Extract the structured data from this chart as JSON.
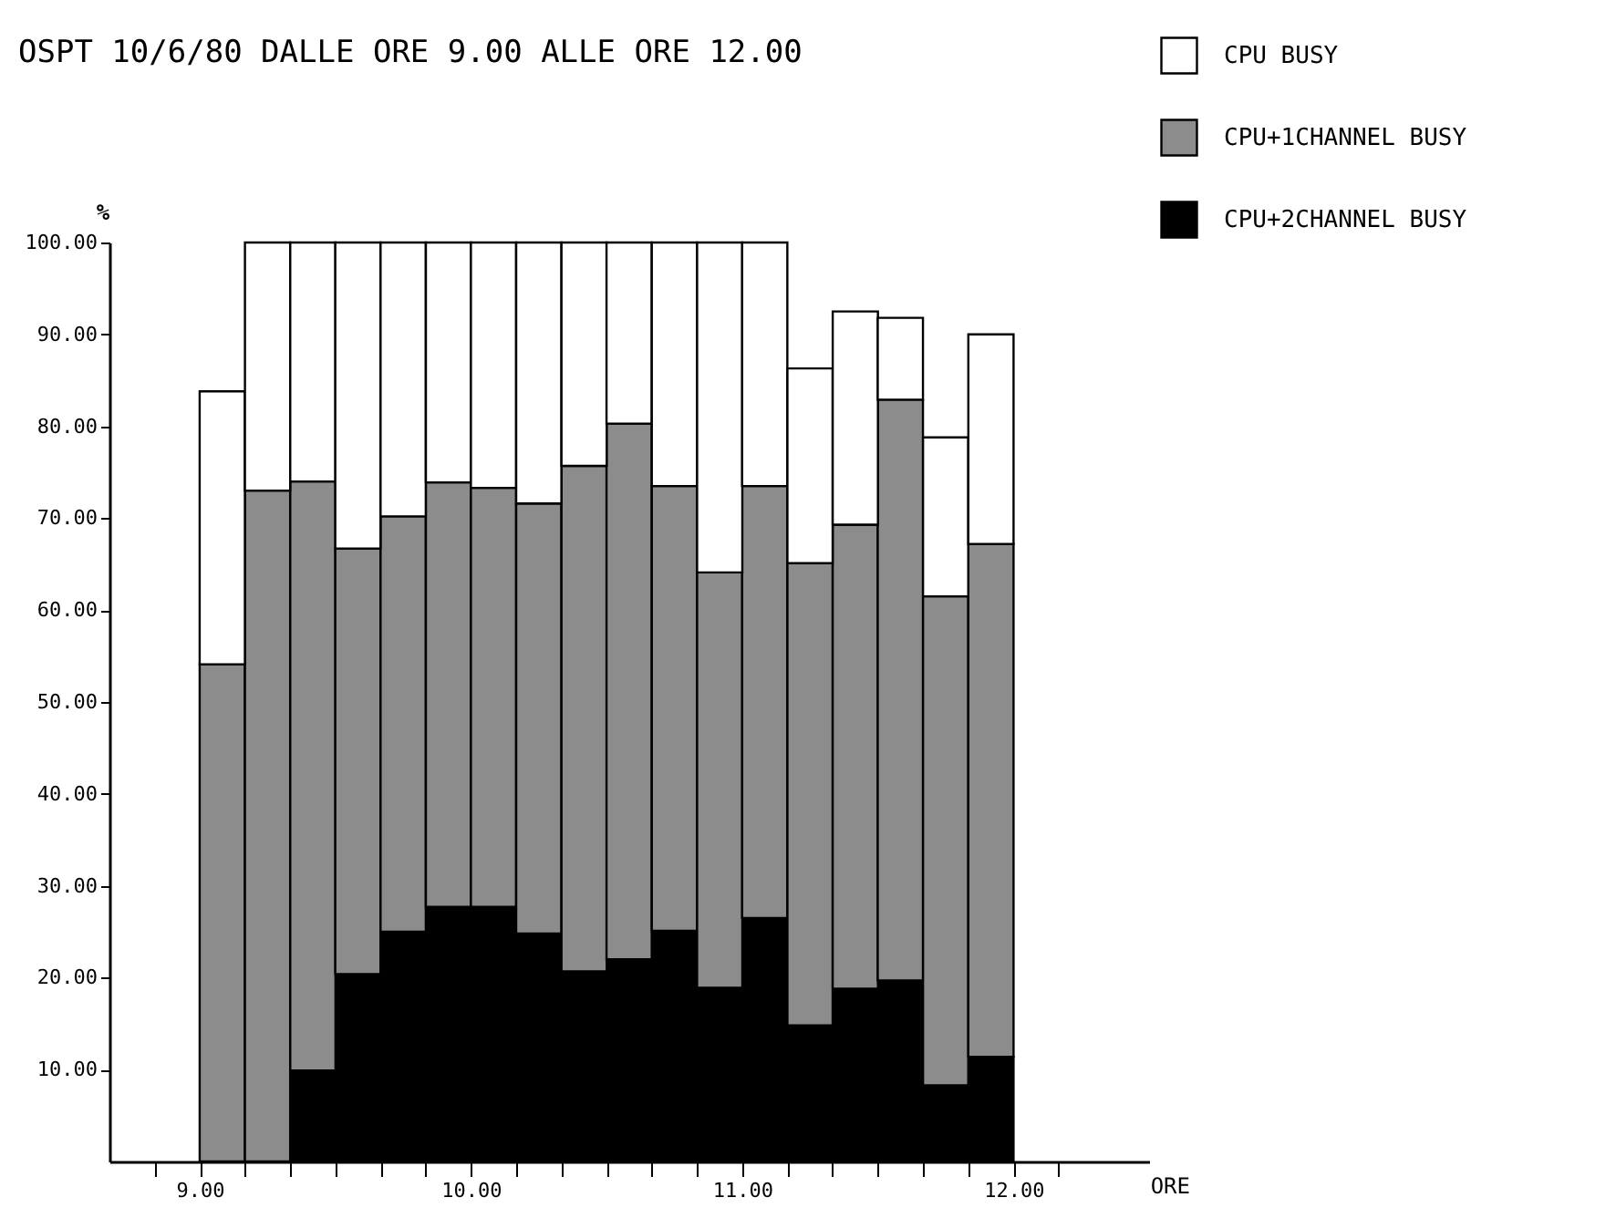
{
  "chart_data": {
    "type": "bar",
    "title": "OSPT 10/6/80 DALLE ORE 9.00 ALLE ORE 12.00",
    "xlabel": "ORE",
    "ylabel": "%",
    "stacked": true,
    "legend": "top right",
    "grid": false,
    "x": [
      9.083,
      9.25,
      9.417,
      9.583,
      9.75,
      9.917,
      10.083,
      10.25,
      10.417,
      10.583,
      10.75,
      10.917,
      11.083,
      11.25,
      11.417,
      11.583,
      11.75,
      11.917
    ],
    "series": [
      {
        "name": "CPU+2CHANNEL BUSY",
        "color": "#000000",
        "values": [
          0,
          0,
          9.9,
          20.4,
          25.0,
          27.7,
          27.7,
          24.8,
          20.7,
          22.0,
          25.1,
          18.9,
          26.5,
          14.8,
          18.8,
          19.7,
          8.3,
          11.4
        ]
      },
      {
        "name": "CPU+1CHANNEL BUSY",
        "color": "#8c8c8c",
        "values": [
          54.1,
          73.0,
          64.1,
          46.3,
          45.2,
          46.2,
          45.6,
          46.8,
          55.0,
          58.3,
          48.4,
          45.2,
          47.0,
          50.3,
          50.5,
          63.2,
          53.2,
          55.8
        ]
      },
      {
        "name": "CPU BUSY",
        "color": "#ffffff",
        "values": [
          29.7,
          27.0,
          26.0,
          33.3,
          29.8,
          26.1,
          26.7,
          28.4,
          24.3,
          19.7,
          26.5,
          35.9,
          26.5,
          21.2,
          23.2,
          8.9,
          17.3,
          22.8
        ]
      }
    ],
    "xlim": [
      8.667,
      12.5
    ],
    "xticks": [
      {
        "value": 8.833,
        "label": null
      },
      {
        "value": 9,
        "label": "9.00"
      },
      {
        "value": 9.167,
        "label": null
      },
      {
        "value": 9.333,
        "label": null
      },
      {
        "value": 9.5,
        "label": null
      },
      {
        "value": 9.667,
        "label": null
      },
      {
        "value": 9.833,
        "label": null
      },
      {
        "value": 10,
        "label": "10.00"
      },
      {
        "value": 10.167,
        "label": null
      },
      {
        "value": 10.333,
        "label": null
      },
      {
        "value": 10.5,
        "label": null
      },
      {
        "value": 10.667,
        "label": null
      },
      {
        "value": 10.833,
        "label": null
      },
      {
        "value": 11,
        "label": "11.00"
      },
      {
        "value": 11.167,
        "label": null
      },
      {
        "value": 11.333,
        "label": null
      },
      {
        "value": 11.5,
        "label": null
      },
      {
        "value": 11.667,
        "label": null
      },
      {
        "value": 11.833,
        "label": null
      },
      {
        "value": 12,
        "label": "12.00"
      },
      {
        "value": 12.167,
        "label": null
      }
    ],
    "ylim": [
      0,
      100
    ],
    "yticks": [
      {
        "value": 10,
        "label": "10.00"
      },
      {
        "value": 20,
        "label": "20.00"
      },
      {
        "value": 30,
        "label": "30.00"
      },
      {
        "value": 40,
        "label": "40.00"
      },
      {
        "value": 50,
        "label": "50.00"
      },
      {
        "value": 60,
        "label": "60.00"
      },
      {
        "value": 70,
        "label": "70.00"
      },
      {
        "value": 80,
        "label": "80.00"
      },
      {
        "value": 90,
        "label": "90.00"
      },
      {
        "value": 100,
        "label": "100.00"
      }
    ]
  }
}
